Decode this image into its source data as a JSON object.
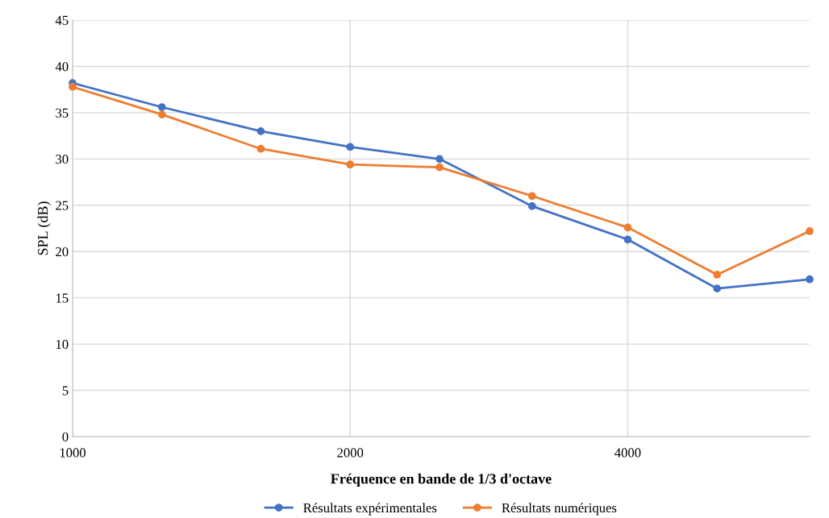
{
  "chart_data": {
    "type": "line",
    "xlabel": "Fréquence en bande de 1/3 d'octave",
    "ylabel": "SPL (dB)",
    "x": [
      1000,
      1250,
      1600,
      2000,
      2500,
      3150,
      4000,
      5000,
      6300
    ],
    "series": [
      {
        "name": "Résultats expérimentales",
        "color": "#4472c4",
        "values": [
          38.2,
          35.6,
          33.0,
          31.3,
          30.0,
          24.9,
          21.3,
          16.0,
          17.0
        ]
      },
      {
        "name": "Résultats numériques",
        "color": "#ed7d31",
        "values": [
          37.8,
          34.8,
          31.1,
          29.4,
          29.1,
          26.0,
          22.6,
          17.5,
          22.2
        ]
      }
    ],
    "log": "x",
    "xlim": [
      1000,
      6300
    ],
    "xticks": [
      1000,
      2000,
      4000
    ],
    "ylim": [
      0,
      45
    ],
    "yticks": [
      0,
      5,
      10,
      15,
      20,
      25,
      30,
      35,
      40,
      45
    ],
    "grid": true,
    "legend": "bottom",
    "marker": "circle",
    "line_style": "solid"
  }
}
